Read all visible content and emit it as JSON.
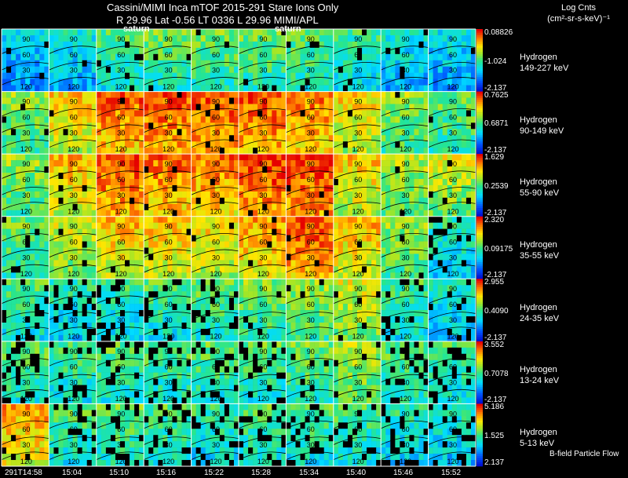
{
  "header": {
    "line1": "Cassini/MIMI Inca mTOF  2015-291    Stare    Ions Only",
    "line2": "R        29.96 Lat -0.56 LT 0336 L          29.96  MIMI/APL",
    "units_line1": "Log Cnts",
    "units_line2": "(cm²-sr-s-keV)⁻¹"
  },
  "overlay_labels": [
    "saturn",
    "saturn"
  ],
  "grid_labels": [
    "90",
    "60",
    "30",
    "120"
  ],
  "time_labels": [
    "291T14:58",
    "15:04",
    "15:10",
    "15:16",
    "15:22",
    "15:28",
    "15:34",
    "15:40",
    "15:46",
    "15:52"
  ],
  "footnote": "B-field Particle Flow",
  "colors": {
    "background": "#000000",
    "grid_line": "#ffffff"
  },
  "chart_data": {
    "type": "heatmap",
    "colormap": "rainbow (blue-cyan-green-yellow-red)",
    "columns": 10,
    "panels": [
      {
        "species": "Hydrogen",
        "energy": "149-227 keV",
        "cb_max": "0.08826",
        "cb_mid": "-1.024",
        "cb_min": "-2.137",
        "intensity": [
          0.3,
          0.35,
          0.45,
          0.5,
          0.5,
          0.5,
          0.48,
          0.42,
          0.35,
          0.32
        ]
      },
      {
        "species": "Hydrogen",
        "energy": "90-149 keV",
        "cb_max": "0.7625",
        "cb_mid": "0.6871",
        "cb_min": "-2.137",
        "intensity": [
          0.55,
          0.7,
          0.82,
          0.85,
          0.85,
          0.85,
          0.8,
          0.68,
          0.55,
          0.5
        ]
      },
      {
        "species": "Hydrogen",
        "energy": "55-90 keV",
        "cb_max": "1.629",
        "cb_mid": "0.2539",
        "cb_min": "-2.137",
        "intensity": [
          0.55,
          0.72,
          0.85,
          0.82,
          0.8,
          0.88,
          0.88,
          0.7,
          0.58,
          0.62
        ]
      },
      {
        "species": "Hydrogen",
        "energy": "35-55 keV",
        "cb_max": "2.320",
        "cb_mid": "0.09175",
        "cb_min": "-2.137",
        "intensity": [
          0.5,
          0.62,
          0.72,
          0.72,
          0.68,
          0.75,
          0.85,
          0.72,
          0.55,
          0.4
        ]
      },
      {
        "species": "Hydrogen",
        "energy": "24-35 keV",
        "cb_max": "2.955",
        "cb_mid": "0.4090",
        "cb_min": "-2.137",
        "intensity": [
          0.45,
          0.4,
          0.42,
          0.45,
          0.48,
          0.52,
          0.55,
          0.62,
          0.45,
          0.38
        ]
      },
      {
        "species": "Hydrogen",
        "energy": "13-24 keV",
        "cb_max": "3.552",
        "cb_mid": "0.7078",
        "cb_min": "-2.137",
        "intensity": [
          0.48,
          0.45,
          0.47,
          0.47,
          0.47,
          0.47,
          0.5,
          0.58,
          0.48,
          0.45
        ]
      },
      {
        "species": "Hydrogen",
        "energy": "5-13 keV",
        "cb_max": "5.186",
        "cb_mid": "1.525",
        "cb_min": "2.137",
        "intensity": [
          0.75,
          0.45,
          0.48,
          0.45,
          0.42,
          0.45,
          0.45,
          0.45,
          0.4,
          0.38
        ]
      }
    ]
  }
}
